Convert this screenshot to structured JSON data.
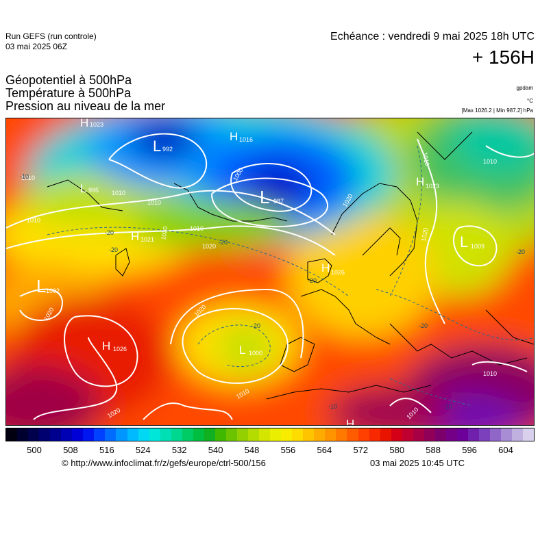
{
  "header": {
    "run_line1": "Run GEFS (run controle)",
    "run_line2": "03 mai 2025 06Z",
    "echeance": "Echéance : vendredi 9 mai 2025 18h UTC",
    "lead_time": "+ 156H"
  },
  "variables": {
    "line1": "Géopotentiel à 500hPa",
    "line2": "Température à 500hPa",
    "line3": "Pression au niveau de la mer"
  },
  "units": {
    "geopotential": "gpdam",
    "temperature": "°C",
    "pressure_range": "[Max 1026.2 | Min 987.2] hPa"
  },
  "map": {
    "pressure_centers": [
      {
        "type": "H",
        "value": "1023"
      },
      {
        "type": "L",
        "value": "992"
      },
      {
        "type": "H",
        "value": "1016"
      },
      {
        "type": "L",
        "value": "995"
      },
      {
        "type": "L",
        "value": "987"
      },
      {
        "type": "H",
        "value": "1023"
      },
      {
        "type": "H",
        "value": "1021"
      },
      {
        "type": "L",
        "value": "1009"
      },
      {
        "type": "H",
        "value": "1026"
      },
      {
        "type": "L",
        "value": "1002"
      },
      {
        "type": "H",
        "value": "1026"
      },
      {
        "type": "L",
        "value": "1000"
      },
      {
        "type": "H",
        "value": ""
      }
    ],
    "isobar_labels": [
      "1010",
      "1010",
      "1010",
      "1010",
      "1000",
      "1020",
      "1020",
      "1020",
      "1020",
      "1020",
      "1020",
      "1010",
      "1010",
      "1010",
      "1010",
      "1010",
      "1020",
      "1010"
    ],
    "isotherm_labels": [
      "-20",
      "-20",
      "-20",
      "-20",
      "-20",
      "-20",
      "-10",
      "-10",
      "-10",
      "-20"
    ]
  },
  "colorbar": {
    "ticks": [
      "500",
      "508",
      "516",
      "524",
      "532",
      "540",
      "548",
      "556",
      "564",
      "572",
      "580",
      "588",
      "596",
      "604"
    ],
    "colors": [
      "#000010",
      "#000030",
      "#00004c",
      "#000070",
      "#00008e",
      "#0000b4",
      "#0000d6",
      "#0016f0",
      "#0040ff",
      "#006cff",
      "#0096ff",
      "#00baff",
      "#00d8f4",
      "#00e6d8",
      "#00e0b4",
      "#00d890",
      "#00cc66",
      "#00be40",
      "#10b020",
      "#40b800",
      "#6cc400",
      "#94d000",
      "#b4dc00",
      "#d4e600",
      "#eaee00",
      "#f8ec00",
      "#ffdc00",
      "#ffc400",
      "#ffac00",
      "#ff9400",
      "#ff7800",
      "#ff5c00",
      "#ff4000",
      "#f82800",
      "#e81400",
      "#d40018",
      "#c00030",
      "#a80044",
      "#900058",
      "#7c006c",
      "#740088",
      "#6c0098",
      "#7020ac",
      "#7c40bc",
      "#9066c8",
      "#a88cd4",
      "#c0b0e0",
      "#d8d0ec"
    ]
  },
  "footer": {
    "url": "© http://www.infoclimat.fr/z/gefs/europe/ctrl-500/156",
    "timestamp": "03 mai 2025 10:45 UTC"
  }
}
